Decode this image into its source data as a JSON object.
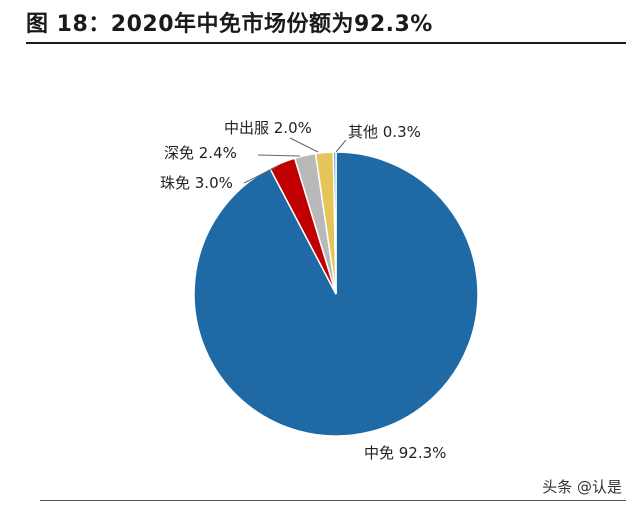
{
  "header": {
    "title": "图 18：2020年中免市场份额为92.3%"
  },
  "watermark": "头条 @认是",
  "colors": {
    "zhongmian": "#1f6aa5",
    "zhumian": "#c00000",
    "shenmian": "#b9b9b9",
    "zhongchufu": "#e5c55a",
    "qita": "#5b9bd5"
  },
  "chart_data": {
    "type": "pie",
    "title": "",
    "slices": [
      {
        "label": "中免 92.3%",
        "value": 92.3,
        "color": "#1f6aa5"
      },
      {
        "label": "珠免 3.0%",
        "value": 3.0,
        "color": "#c00000"
      },
      {
        "label": "深免 2.4%",
        "value": 2.4,
        "color": "#b9b9b9"
      },
      {
        "label": "中出服 2.0%",
        "value": 2.0,
        "color": "#e5c55a"
      },
      {
        "label": "其他 0.3%",
        "value": 0.3,
        "color": "#5b9bd5"
      }
    ],
    "start_angle_deg": 0,
    "direction": "counterclockwise-from-top"
  }
}
